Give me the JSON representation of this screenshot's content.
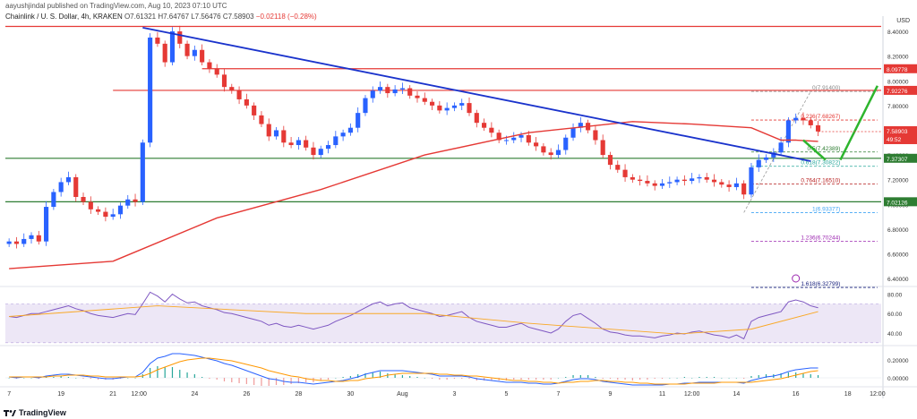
{
  "header": {
    "published": "aayushjindal published on TradingView.com, Aug 10, 2023 07:10 UTC"
  },
  "symbol": {
    "name": "Chainlink / U. S. Dollar, 4h, KRAKEN",
    "ohlc": "O7.61321 H7.64767 L7.56476 C7.58903",
    "change": "−0.02118 (−0.28%)"
  },
  "currency": "USD",
  "footer": {
    "brand": "TradingView"
  },
  "colors": {
    "up": "#2962ff",
    "down": "#e53935",
    "ma": "#e53935",
    "trendline": "#1a33cc",
    "resistance": "#e53935",
    "support": "#2e7d32",
    "arrow": "#2db52d",
    "rsi": "#7e57c2",
    "rsi_band": "#ede7f6",
    "macd": "#2962ff",
    "signal": "#ff9800"
  },
  "chart_data": {
    "type": "candlestick",
    "y_axis_ticks": [
      "8.40000",
      "8.20000",
      "8.00000",
      "7.80000",
      "7.60000",
      "7.40000",
      "7.20000",
      "7.00000",
      "6.80000",
      "6.60000",
      "6.40000"
    ],
    "y_range": [
      6.35,
      8.48
    ],
    "x_axis_ticks": [
      {
        "label": "7",
        "i": 0
      },
      {
        "label": "19",
        "i": 7
      },
      {
        "label": "21",
        "i": 14
      },
      {
        "label": "12:00",
        "i": 17.5
      },
      {
        "label": "24",
        "i": 25
      },
      {
        "label": "26",
        "i": 32
      },
      {
        "label": "28",
        "i": 39
      },
      {
        "label": "30",
        "i": 46
      },
      {
        "label": "Aug",
        "i": 53
      },
      {
        "label": "3",
        "i": 60
      },
      {
        "label": "5",
        "i": 67
      },
      {
        "label": "7",
        "i": 74
      },
      {
        "label": "9",
        "i": 81
      },
      {
        "label": "11",
        "i": 88
      },
      {
        "label": "12:00",
        "i": 92
      },
      {
        "label": "14",
        "i": 98
      },
      {
        "label": "16",
        "i": 106
      },
      {
        "label": "18",
        "i": 113
      },
      {
        "label": "12:00",
        "i": 117
      }
    ],
    "x_count": 118,
    "closes": [
      6.7,
      6.68,
      6.72,
      6.75,
      6.7,
      6.98,
      7.1,
      7.18,
      7.22,
      7.06,
      7.02,
      6.96,
      6.94,
      6.9,
      6.92,
      6.99,
      7.04,
      7.02,
      7.5,
      8.35,
      8.3,
      8.15,
      8.4,
      8.3,
      8.2,
      8.25,
      8.15,
      8.1,
      8.05,
      7.95,
      7.92,
      7.85,
      7.8,
      7.72,
      7.65,
      7.55,
      7.6,
      7.5,
      7.48,
      7.52,
      7.46,
      7.4,
      7.45,
      7.48,
      7.55,
      7.58,
      7.62,
      7.74,
      7.86,
      7.92,
      7.95,
      7.9,
      7.93,
      7.94,
      7.88,
      7.86,
      7.83,
      7.8,
      7.76,
      7.78,
      7.8,
      7.82,
      7.74,
      7.66,
      7.62,
      7.58,
      7.52,
      7.52,
      7.54,
      7.56,
      7.5,
      7.47,
      7.42,
      7.4,
      7.44,
      7.54,
      7.62,
      7.66,
      7.6,
      7.52,
      7.4,
      7.32,
      7.28,
      7.22,
      7.2,
      7.19,
      7.17,
      7.15,
      7.17,
      7.18,
      7.2,
      7.19,
      7.21,
      7.22,
      7.2,
      7.18,
      7.16,
      7.14,
      7.17,
      7.08,
      7.3,
      7.36,
      7.38,
      7.42,
      7.5,
      7.68,
      7.7,
      7.68,
      7.64,
      7.59
    ],
    "moving_average": {
      "points": [
        [
          0,
          6.48
        ],
        [
          14,
          6.54
        ],
        [
          28,
          6.89
        ],
        [
          42,
          7.12
        ],
        [
          56,
          7.4
        ],
        [
          70,
          7.58
        ],
        [
          84,
          7.67
        ],
        [
          92,
          7.65
        ],
        [
          100,
          7.62
        ],
        [
          104,
          7.52
        ],
        [
          106,
          7.52
        ],
        [
          109,
          7.51
        ]
      ]
    },
    "trendline": {
      "from": [
        18,
        8.43
      ],
      "to": [
        108,
        7.35
      ]
    },
    "horizontal_levels": [
      {
        "value": 8.44,
        "color": "resistance"
      },
      {
        "value": 8.09778,
        "color": "resistance",
        "label": "8.09778"
      },
      {
        "value": 7.92276,
        "color": "resistance",
        "label": "7.92276"
      },
      {
        "value": 7.37307,
        "color": "support",
        "label": "7.37307"
      },
      {
        "value": 7.02126,
        "color": "support",
        "label": "7.02126"
      }
    ],
    "last_price": {
      "value": 7.58903,
      "label": "7.58903",
      "countdown": "49:52"
    },
    "fibonacci": [
      {
        "ratio": "0",
        "value": 7.914,
        "label": "0(7.91400)",
        "color": "#888888"
      },
      {
        "ratio": "0.236",
        "value": 7.68267,
        "label": "0.236(7.68267)",
        "color": "#e53935"
      },
      {
        "ratio": "0.5",
        "value": 7.42389,
        "label": "0.5(7.42389)",
        "color": "#2e7d32"
      },
      {
        "ratio": "0.618",
        "value": 7.30822,
        "label": "0.618(7.30822)",
        "color": "#26a69a"
      },
      {
        "ratio": "0.764",
        "value": 7.1651,
        "label": "0.764(7.16510)",
        "color": "#b71c1c"
      },
      {
        "ratio": "1",
        "value": 6.93377,
        "label": "1(6.93377)",
        "color": "#42a5f5"
      },
      {
        "ratio": "1.236",
        "value": 6.70244,
        "label": "1.236(6.70244)",
        "color": "#9c27b0"
      },
      {
        "ratio": "1.618",
        "value": 6.32799,
        "label": "1.618(6.32799)",
        "color": "#1a237e"
      }
    ],
    "rsi": {
      "ticks": [
        "80.00",
        "60.00",
        "40.00"
      ],
      "range": [
        28,
        86
      ],
      "band": [
        30,
        70
      ],
      "values": [
        57,
        56,
        58,
        60,
        60,
        62,
        64,
        66,
        68,
        65,
        63,
        60,
        58,
        57,
        56,
        58,
        60,
        59,
        70,
        82,
        78,
        72,
        80,
        75,
        71,
        72,
        68,
        66,
        64,
        61,
        60,
        58,
        56,
        54,
        52,
        48,
        50,
        47,
        46,
        48,
        46,
        44,
        46,
        48,
        52,
        55,
        58,
        62,
        66,
        70,
        72,
        68,
        70,
        71,
        66,
        64,
        62,
        60,
        57,
        58,
        60,
        62,
        56,
        52,
        50,
        48,
        46,
        46,
        48,
        50,
        46,
        44,
        42,
        40,
        44,
        52,
        58,
        60,
        55,
        50,
        44,
        41,
        40,
        38,
        37,
        37,
        36,
        35,
        37,
        38,
        40,
        39,
        41,
        42,
        40,
        38,
        37,
        35,
        38,
        34,
        52,
        56,
        58,
        60,
        62,
        72,
        74,
        72,
        68,
        66
      ],
      "ma_points": [
        [
          0,
          57
        ],
        [
          20,
          68
        ],
        [
          40,
          60
        ],
        [
          56,
          60
        ],
        [
          70,
          50
        ],
        [
          90,
          39
        ],
        [
          100,
          44
        ],
        [
          109,
          62
        ]
      ]
    },
    "macd": {
      "ticks": [
        "0.20000",
        "0.00000"
      ],
      "range": [
        -0.08,
        0.34
      ],
      "values": [
        0.01,
        0.0,
        0.01,
        0.01,
        0.0,
        0.02,
        0.03,
        0.04,
        0.04,
        0.03,
        0.02,
        0.01,
        0.0,
        -0.01,
        -0.01,
        0.0,
        0.01,
        0.01,
        0.06,
        0.16,
        0.22,
        0.24,
        0.27,
        0.27,
        0.26,
        0.25,
        0.23,
        0.21,
        0.19,
        0.16,
        0.14,
        0.11,
        0.08,
        0.05,
        0.02,
        -0.01,
        -0.02,
        -0.04,
        -0.05,
        -0.05,
        -0.06,
        -0.07,
        -0.06,
        -0.05,
        -0.04,
        -0.03,
        -0.01,
        0.01,
        0.04,
        0.06,
        0.08,
        0.08,
        0.08,
        0.08,
        0.07,
        0.06,
        0.05,
        0.04,
        0.02,
        0.02,
        0.02,
        0.02,
        0.01,
        -0.01,
        -0.02,
        -0.03,
        -0.04,
        -0.05,
        -0.05,
        -0.05,
        -0.06,
        -0.06,
        -0.07,
        -0.07,
        -0.06,
        -0.04,
        -0.02,
        -0.01,
        -0.01,
        -0.02,
        -0.04,
        -0.05,
        -0.06,
        -0.07,
        -0.08,
        -0.08,
        -0.08,
        -0.08,
        -0.08,
        -0.07,
        -0.07,
        -0.06,
        -0.06,
        -0.05,
        -0.05,
        -0.05,
        -0.05,
        -0.05,
        -0.05,
        -0.06,
        -0.03,
        -0.01,
        0.01,
        0.02,
        0.04,
        0.07,
        0.09,
        0.1,
        0.11,
        0.11
      ],
      "signal": [
        0.01,
        0.01,
        0.01,
        0.01,
        0.01,
        0.01,
        0.02,
        0.02,
        0.03,
        0.03,
        0.03,
        0.02,
        0.02,
        0.01,
        0.01,
        0.01,
        0.01,
        0.01,
        0.02,
        0.05,
        0.09,
        0.12,
        0.15,
        0.18,
        0.2,
        0.21,
        0.22,
        0.22,
        0.21,
        0.2,
        0.19,
        0.17,
        0.15,
        0.13,
        0.11,
        0.08,
        0.06,
        0.04,
        0.02,
        0.01,
        -0.01,
        -0.02,
        -0.03,
        -0.03,
        -0.04,
        -0.04,
        -0.03,
        -0.03,
        -0.01,
        0.0,
        0.01,
        0.03,
        0.04,
        0.05,
        0.05,
        0.05,
        0.05,
        0.05,
        0.04,
        0.04,
        0.03,
        0.03,
        0.02,
        0.02,
        0.01,
        0.0,
        -0.01,
        -0.02,
        -0.03,
        -0.03,
        -0.04,
        -0.04,
        -0.05,
        -0.05,
        -0.06,
        -0.05,
        -0.05,
        -0.04,
        -0.04,
        -0.03,
        -0.03,
        -0.04,
        -0.04,
        -0.05,
        -0.05,
        -0.06,
        -0.06,
        -0.07,
        -0.07,
        -0.07,
        -0.07,
        -0.07,
        -0.06,
        -0.06,
        -0.06,
        -0.06,
        -0.05,
        -0.05,
        -0.05,
        -0.05,
        -0.05,
        -0.04,
        -0.03,
        -0.02,
        -0.01,
        0.01,
        0.03,
        0.05,
        0.07,
        0.08
      ]
    }
  }
}
